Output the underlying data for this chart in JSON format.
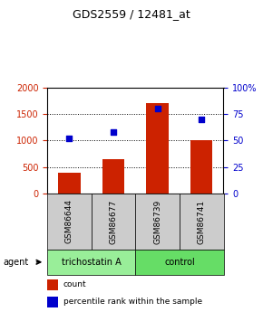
{
  "title": "GDS2559 / 12481_at",
  "samples": [
    "GSM86644",
    "GSM86677",
    "GSM86739",
    "GSM86741"
  ],
  "counts": [
    390,
    640,
    1700,
    1010
  ],
  "percentile_ranks": [
    52,
    58,
    80,
    70
  ],
  "ylim_left": [
    0,
    2000
  ],
  "ylim_right": [
    0,
    100
  ],
  "yticks_left": [
    0,
    500,
    1000,
    1500,
    2000
  ],
  "yticks_right": [
    0,
    25,
    50,
    75,
    100
  ],
  "ytick_labels_right": [
    "0",
    "25",
    "50",
    "75",
    "100%"
  ],
  "bar_color": "#cc2200",
  "dot_color": "#0000cc",
  "agent_groups": [
    {
      "label": "trichostatin A",
      "samples": [
        0,
        1
      ],
      "color": "#99ee99"
    },
    {
      "label": "control",
      "samples": [
        2,
        3
      ],
      "color": "#66dd66"
    }
  ],
  "legend_items": [
    {
      "label": "count",
      "color": "#cc2200"
    },
    {
      "label": "percentile rank within the sample",
      "color": "#0000cc"
    }
  ],
  "bg_color": "#ffffff",
  "plot_bg_color": "#ffffff",
  "tick_label_color_left": "#cc2200",
  "tick_label_color_right": "#0000cc",
  "grid_color": "#000000",
  "sample_box_color": "#cccccc"
}
